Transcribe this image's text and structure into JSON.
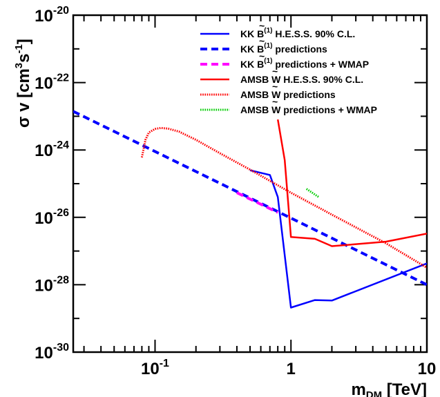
{
  "chart_data": {
    "type": "line",
    "xscale": "log",
    "yscale": "log",
    "xlim": [
      0.025,
      10
    ],
    "ylim": [
      1e-30,
      1e-20
    ],
    "xlabel": {
      "text": "m",
      "sub": "DM",
      "unit": "[TeV]"
    },
    "ylabel": {
      "sigma": "σ v [cm",
      "sup1": "3",
      "mid": "s",
      "sup2": "-1",
      "end": "]"
    },
    "x_tick_labels": [
      {
        "value": 0.1,
        "base": "10",
        "exp": "-1"
      },
      {
        "value": 1,
        "base": "1",
        "exp": ""
      },
      {
        "value": 10,
        "base": "10",
        "exp": ""
      }
    ],
    "y_tick_labels": [
      {
        "value": 1e-20,
        "base": "10",
        "exp": "-20"
      },
      {
        "value": 1e-22,
        "base": "10",
        "exp": "-22"
      },
      {
        "value": 1e-24,
        "base": "10",
        "exp": "-24"
      },
      {
        "value": 1e-26,
        "base": "10",
        "exp": "-26"
      },
      {
        "value": 1e-28,
        "base": "10",
        "exp": "-28"
      },
      {
        "value": 1e-30,
        "base": "10",
        "exp": "-30"
      }
    ],
    "legend_position": "top-right",
    "series": [
      {
        "legend_prefix": "KK ",
        "legend_particle": "B",
        "legend_accent": "~",
        "legend_sup": "(1)",
        "legend_rest": " H.E.S.S. 90% C.L.",
        "color": "#0000ff",
        "style": "solid",
        "x": [
          0.5,
          0.7,
          0.8,
          1.0,
          1.5,
          2.0,
          10.0
        ],
        "y": [
          2.5e-25,
          1.8e-25,
          4e-26,
          2.1e-29,
          3.5e-29,
          3.4e-29,
          4.3e-28
        ]
      },
      {
        "legend_prefix": "KK ",
        "legend_particle": "B",
        "legend_accent": "~",
        "legend_sup": "(1)",
        "legend_rest": " predictions",
        "color": "#0000ff",
        "style": "dashed",
        "x": [
          0.025,
          10
        ],
        "y": [
          1.4e-23,
          1e-28
        ]
      },
      {
        "legend_prefix": "KK ",
        "legend_particle": "B",
        "legend_accent": "~",
        "legend_sup": "(1)",
        "legend_rest": " predictions + WMAP",
        "color": "#ff00ff",
        "style": "dashed",
        "x": [
          0.4,
          0.8
        ],
        "y": [
          5.4e-26,
          1.4e-26
        ]
      },
      {
        "legend_prefix": "AMSB ",
        "legend_particle": "W",
        "legend_accent": "~",
        "legend_sup": "",
        "legend_rest": " H.E.S.S. 90% C.L.",
        "color": "#ff0000",
        "style": "solid",
        "x": [
          0.8,
          0.9,
          1.0,
          1.5,
          2.0,
          2.5,
          5.0,
          10.0
        ],
        "y": [
          8e-24,
          5e-25,
          2.6e-27,
          2.3e-27,
          1.4e-27,
          1.5e-27,
          1.9e-27,
          3.3e-27
        ]
      },
      {
        "legend_prefix": "AMSB ",
        "legend_particle": "W",
        "legend_accent": "~",
        "legend_sup": "",
        "legend_rest": " predictions",
        "color": "#ff0000",
        "style": "dotted",
        "x": [
          0.08,
          0.085,
          0.09,
          0.1,
          0.11,
          0.125,
          0.15,
          0.2,
          0.3,
          0.5,
          1,
          2,
          5,
          10
        ],
        "y": [
          6e-25,
          2e-24,
          3.3e-24,
          4.2e-24,
          4.5e-24,
          4.3e-24,
          3.5e-24,
          2e-24,
          8e-25,
          2.6e-25,
          5.4e-26,
          1.2e-26,
          1.7e-27,
          3.2e-28
        ]
      },
      {
        "legend_prefix": "AMSB ",
        "legend_particle": "W",
        "legend_accent": "~",
        "legend_sup": "",
        "legend_rest": " predictions + WMAP",
        "color": "#00cc00",
        "style": "dotted",
        "x": [
          1.3,
          1.6
        ],
        "y": [
          7e-26,
          4e-26
        ]
      }
    ]
  }
}
